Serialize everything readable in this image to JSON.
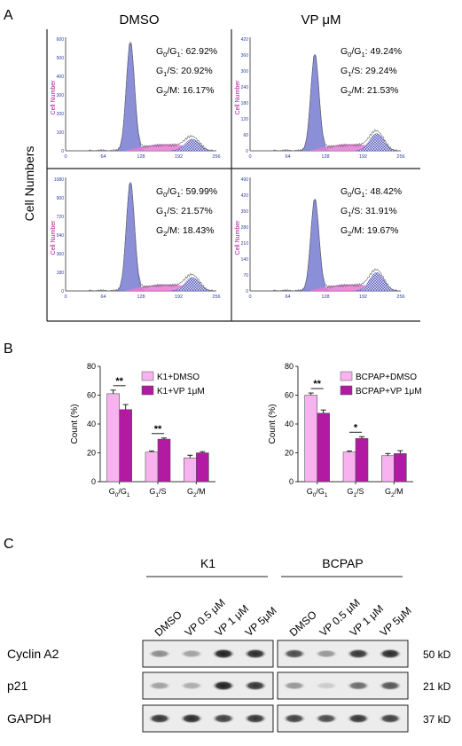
{
  "panels": {
    "a": "A",
    "b": "B",
    "c": "C"
  },
  "flow": {
    "col_titles": [
      "DMSO",
      "VP μM"
    ],
    "y_title": "Cell Numbers",
    "inner_ylabel": "Cell Number",
    "x_ticks": [
      "0",
      "64",
      "128",
      "192",
      "256"
    ],
    "hists": [
      {
        "y_ticks": [
          "0",
          "100",
          "200",
          "300",
          "400",
          "500",
          "600"
        ],
        "g0g1": "62.92%",
        "g1s": "20.92%",
        "g2m": "16.17%"
      },
      {
        "y_ticks": [
          "0",
          "60",
          "120",
          "180",
          "240",
          "300",
          "360",
          "420"
        ],
        "g0g1": "49.24%",
        "g1s": "29.24%",
        "g2m": "21.53%"
      },
      {
        "y_ticks": [
          "0",
          "180",
          "360",
          "540",
          "720",
          "900",
          "1080"
        ],
        "g0g1": "59.99%",
        "g1s": "21.57%",
        "g2m": "18.43%"
      },
      {
        "y_ticks": [
          "0",
          "70",
          "140",
          "210",
          "280",
          "350",
          "420",
          "490"
        ],
        "g0g1": "48.42%",
        "g1s": "31.91%",
        "g2m": "19.67%"
      }
    ],
    "labels": {
      "g0g1": "G0/G1",
      "g1s": "G1/S",
      "g2m": "G2/M"
    }
  },
  "chart_data": [
    {
      "type": "bar",
      "categories": [
        "G0/G1",
        "G1/S",
        "G2/M"
      ],
      "series": [
        {
          "name": "K1+DMSO",
          "values": [
            61,
            20.5,
            16.5
          ],
          "errors": [
            2.5,
            0.8,
            1.8
          ],
          "color": "#f7b2ef"
        },
        {
          "name": "K1+VP 1μM",
          "values": [
            50,
            29.5,
            20
          ],
          "errors": [
            3.5,
            0.8,
            0.8
          ],
          "color": "#b21aa3"
        }
      ],
      "significance": [
        {
          "category": 0,
          "label": "**"
        },
        {
          "category": 1,
          "label": "**"
        }
      ],
      "ylabel": "Count (%)",
      "ylim": [
        0,
        80
      ],
      "yticks": [
        0,
        20,
        40,
        60,
        80
      ],
      "legend": "top-right"
    },
    {
      "type": "bar",
      "categories": [
        "G0/G1",
        "G1/S",
        "G2/M"
      ],
      "series": [
        {
          "name": "BCPAP+DMSO",
          "values": [
            60,
            20.5,
            18
          ],
          "errors": [
            1.5,
            0.8,
            1.5
          ],
          "color": "#f7b2ef"
        },
        {
          "name": "BCPAP+VP 1μM",
          "values": [
            47.5,
            30,
            19.5
          ],
          "errors": [
            2.2,
            1.2,
            2.0
          ],
          "color": "#b21aa3"
        }
      ],
      "significance": [
        {
          "category": 0,
          "label": "**"
        },
        {
          "category": 1,
          "label": "*"
        }
      ],
      "ylabel": "Count (%)",
      "ylim": [
        0,
        80
      ],
      "yticks": [
        0,
        20,
        40,
        60,
        80
      ],
      "legend": "top-right"
    }
  ],
  "blot": {
    "groups": [
      "K1",
      "BCPAP"
    ],
    "lanes": [
      "DMSO",
      "VP 0.5 μM",
      "VP 1 μM",
      "VP 5μM"
    ],
    "rows": [
      {
        "name": "Cyclin A2",
        "kd": "50 kD",
        "k1": [
          0.45,
          0.35,
          0.95,
          0.9
        ],
        "bcpap": [
          0.75,
          0.4,
          0.85,
          0.9
        ]
      },
      {
        "name": "p21",
        "kd": "21 kD",
        "k1": [
          0.35,
          0.3,
          0.95,
          0.85
        ],
        "bcpap": [
          0.4,
          0.15,
          0.6,
          0.7
        ]
      },
      {
        "name": "GAPDH",
        "kd": "37 kD",
        "k1": [
          0.85,
          0.9,
          0.8,
          0.85
        ],
        "bcpap": [
          0.8,
          0.75,
          0.85,
          0.8
        ]
      }
    ]
  }
}
